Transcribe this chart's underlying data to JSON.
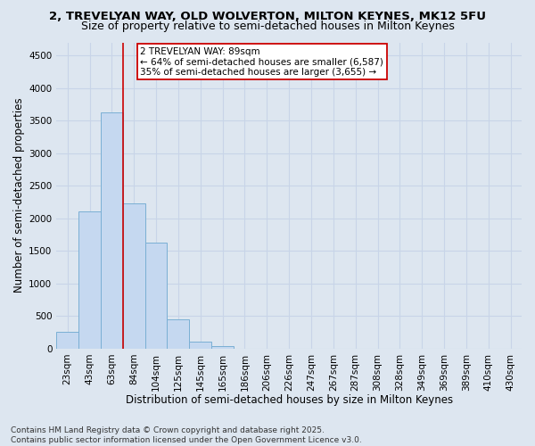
{
  "title_line1": "2, TREVELYAN WAY, OLD WOLVERTON, MILTON KEYNES, MK12 5FU",
  "title_line2": "Size of property relative to semi-detached houses in Milton Keynes",
  "bar_labels": [
    "23sqm",
    "43sqm",
    "63sqm",
    "84sqm",
    "104sqm",
    "125sqm",
    "145sqm",
    "165sqm",
    "186sqm",
    "206sqm",
    "226sqm",
    "247sqm",
    "267sqm",
    "287sqm",
    "308sqm",
    "328sqm",
    "349sqm",
    "369sqm",
    "389sqm",
    "410sqm",
    "430sqm"
  ],
  "bar_values": [
    255,
    2100,
    3625,
    2230,
    1630,
    450,
    105,
    45,
    0,
    0,
    0,
    0,
    0,
    0,
    0,
    0,
    0,
    0,
    0,
    0,
    0
  ],
  "bar_color": "#c5d8f0",
  "bar_edge_color": "#7aafd4",
  "grid_color": "#c8d4e8",
  "background_color": "#dde6f0",
  "vline_color": "#cc0000",
  "vline_x_index": 3,
  "annotation_text": "2 TREVELYAN WAY: 89sqm\n← 64% of semi-detached houses are smaller (6,587)\n35% of semi-detached houses are larger (3,655) →",
  "annotation_box_facecolor": "#ffffff",
  "annotation_box_edgecolor": "#cc0000",
  "xlabel": "Distribution of semi-detached houses by size in Milton Keynes",
  "ylabel": "Number of semi-detached properties",
  "ylim": [
    0,
    4700
  ],
  "yticks": [
    0,
    500,
    1000,
    1500,
    2000,
    2500,
    3000,
    3500,
    4000,
    4500
  ],
  "footer_line1": "Contains HM Land Registry data © Crown copyright and database right 2025.",
  "footer_line2": "Contains public sector information licensed under the Open Government Licence v3.0.",
  "title_fontsize": 9.5,
  "subtitle_fontsize": 9,
  "axis_label_fontsize": 8.5,
  "tick_fontsize": 7.5,
  "annotation_fontsize": 7.5,
  "footer_fontsize": 6.5
}
